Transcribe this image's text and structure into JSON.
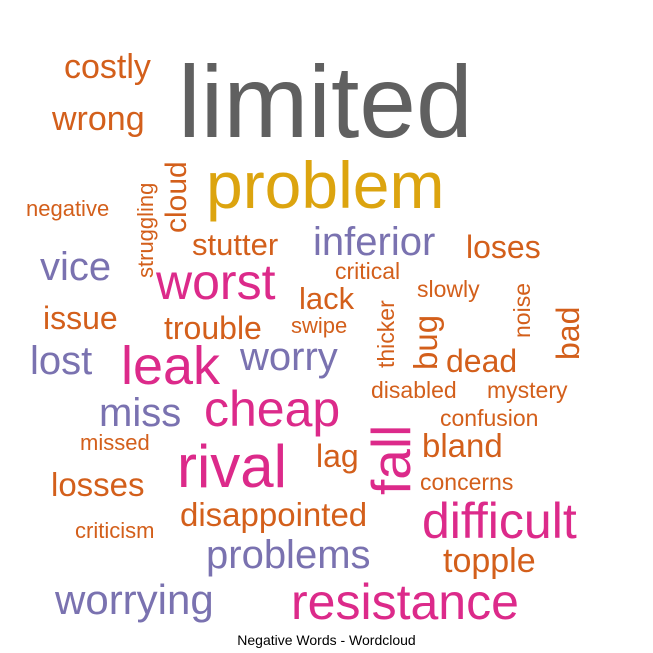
{
  "chart_data": {
    "type": "wordcloud",
    "title": "Negative Words - Wordcloud",
    "colors": {
      "orange": "#d35f1b",
      "gold": "#dca40f",
      "purple": "#7a72b0",
      "magenta": "#dc2a8a",
      "gray": "#606060"
    },
    "words": [
      {
        "text": "limited",
        "color": "#606060"
      },
      {
        "text": "problem",
        "color": "#dca40f"
      },
      {
        "text": "costly",
        "color": "#d35f1b"
      },
      {
        "text": "wrong",
        "color": "#d35f1b"
      },
      {
        "text": "negative",
        "color": "#d35f1b"
      },
      {
        "text": "struggling",
        "color": "#d35f1b"
      },
      {
        "text": "cloud",
        "color": "#d35f1b"
      },
      {
        "text": "stutter",
        "color": "#d35f1b"
      },
      {
        "text": "inferior",
        "color": "#7a72b0"
      },
      {
        "text": "loses",
        "color": "#d35f1b"
      },
      {
        "text": "vice",
        "color": "#7a72b0"
      },
      {
        "text": "worst",
        "color": "#dc2a8a"
      },
      {
        "text": "critical",
        "color": "#d35f1b"
      },
      {
        "text": "lack",
        "color": "#d35f1b"
      },
      {
        "text": "slowly",
        "color": "#d35f1b"
      },
      {
        "text": "noise",
        "color": "#d35f1b"
      },
      {
        "text": "bad",
        "color": "#d35f1b"
      },
      {
        "text": "issue",
        "color": "#d35f1b"
      },
      {
        "text": "trouble",
        "color": "#d35f1b"
      },
      {
        "text": "swipe",
        "color": "#d35f1b"
      },
      {
        "text": "thicker",
        "color": "#d35f1b"
      },
      {
        "text": "bug",
        "color": "#d35f1b"
      },
      {
        "text": "lost",
        "color": "#7a72b0"
      },
      {
        "text": "leak",
        "color": "#dc2a8a"
      },
      {
        "text": "worry",
        "color": "#7a72b0"
      },
      {
        "text": "dead",
        "color": "#d35f1b"
      },
      {
        "text": "disabled",
        "color": "#d35f1b"
      },
      {
        "text": "mystery",
        "color": "#d35f1b"
      },
      {
        "text": "miss",
        "color": "#7a72b0"
      },
      {
        "text": "cheap",
        "color": "#dc2a8a"
      },
      {
        "text": "confusion",
        "color": "#d35f1b"
      },
      {
        "text": "missed",
        "color": "#d35f1b"
      },
      {
        "text": "rival",
        "color": "#dc2a8a"
      },
      {
        "text": "lag",
        "color": "#d35f1b"
      },
      {
        "text": "fall",
        "color": "#dc2a8a"
      },
      {
        "text": "bland",
        "color": "#d35f1b"
      },
      {
        "text": "losses",
        "color": "#d35f1b"
      },
      {
        "text": "concerns",
        "color": "#d35f1b"
      },
      {
        "text": "criticism",
        "color": "#d35f1b"
      },
      {
        "text": "disappointed",
        "color": "#d35f1b"
      },
      {
        "text": "difficult",
        "color": "#dc2a8a"
      },
      {
        "text": "problems",
        "color": "#7a72b0"
      },
      {
        "text": "topple",
        "color": "#d35f1b"
      },
      {
        "text": "worrying",
        "color": "#7a72b0"
      },
      {
        "text": "resistance",
        "color": "#dc2a8a"
      }
    ]
  }
}
